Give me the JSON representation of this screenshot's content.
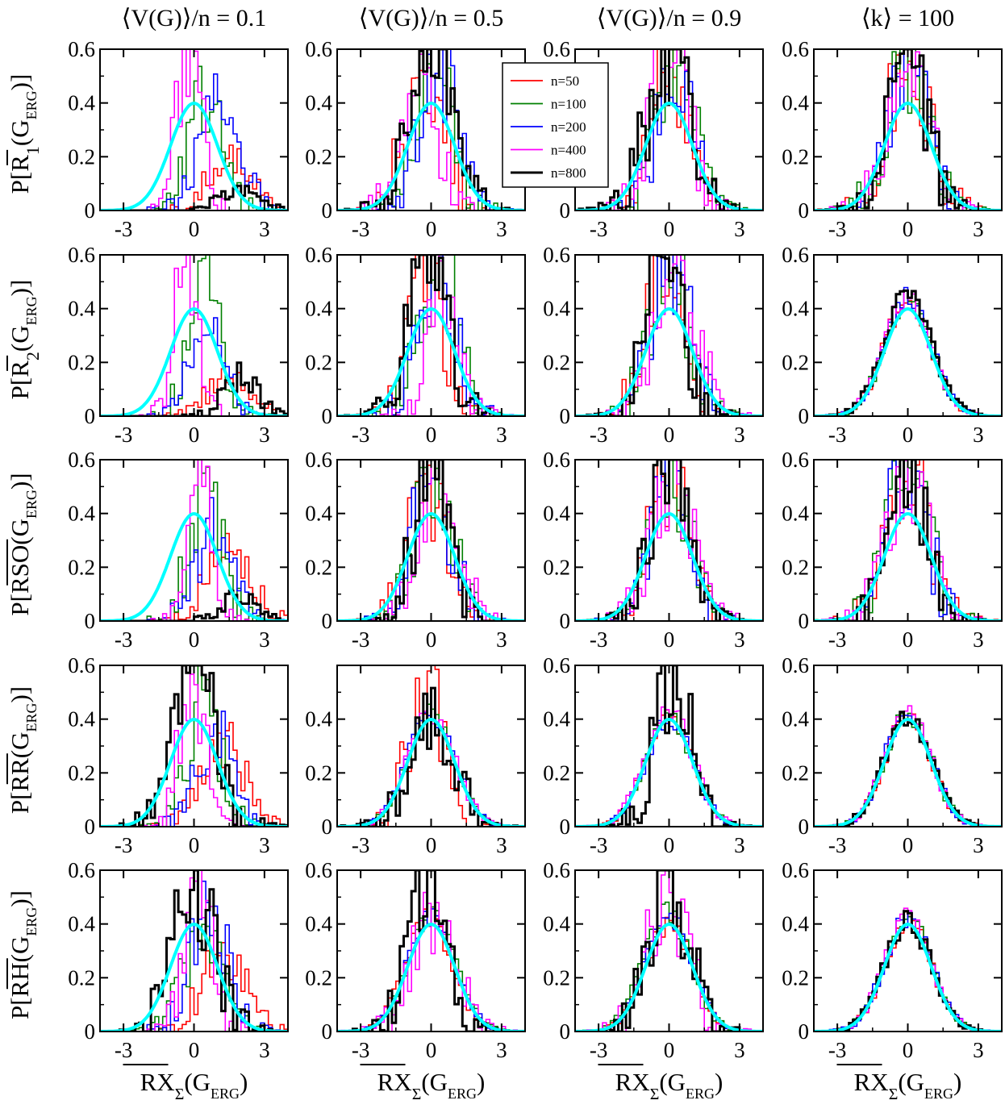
{
  "figure": {
    "column_titles": [
      "⟨V(G)⟩/n = 0.1",
      "⟨V(G)⟩/n = 0.5",
      "⟨V(G)⟩/n = 0.9",
      "⟨k⟩ = 100"
    ],
    "row_ylabels": [
      {
        "main": "P[R",
        "bar": "R",
        "sub": "1",
        "tail": "(G",
        "tail_sub": "ERG",
        "end": ")]"
      },
      {
        "main": "P[R",
        "bar": "R",
        "sub": "2",
        "tail": "(G",
        "tail_sub": "ERG",
        "end": ")]"
      },
      {
        "main": "P[RSO",
        "bar": "RSO",
        "sub": "",
        "tail": "(G",
        "tail_sub": "ERG",
        "end": ")]"
      },
      {
        "main": "P[RR",
        "bar": "RR",
        "sub": "",
        "tail": "(G",
        "tail_sub": "ERG",
        "end": ")]"
      },
      {
        "main": "P[RH",
        "bar": "RH",
        "sub": "",
        "tail": "(G",
        "tail_sub": "ERG",
        "end": ")]"
      }
    ],
    "xlabel": {
      "main": "RX",
      "sub": "Σ",
      "tail": "(G",
      "tail_sub": "ERG",
      "end": ")"
    }
  },
  "chart_data": {
    "type": "histogram",
    "layout": "5 rows x 4 columns of panels",
    "xlim": [
      -4,
      4
    ],
    "ylim": [
      0,
      0.6
    ],
    "xticks": [
      "-3",
      "0",
      "3"
    ],
    "yticks": [
      "0",
      "0.2",
      "0.4",
      "0.6"
    ],
    "reference_curve": {
      "name": "standard normal",
      "color": "#00ffff",
      "mean": 0,
      "std": 1,
      "peak": 0.399
    },
    "legend": {
      "panel": "row 1, column 3",
      "entries": [
        {
          "label": "n=50",
          "color": "#ff0000"
        },
        {
          "label": "n=100",
          "color": "#008000"
        },
        {
          "label": "n=200",
          "color": "#0000ff"
        },
        {
          "label": "n=400",
          "color": "#ff00ff"
        },
        {
          "label": "n=800",
          "color": "#000000"
        }
      ]
    },
    "series_colors": {
      "n50": "#ff0000",
      "n100": "#008000",
      "n200": "#0000ff",
      "n400": "#ff00ff",
      "n800": "#000000"
    },
    "panels": [
      [
        {
          "n50": {
            "c": 1.5,
            "s": 0.9,
            "p": 0.2
          },
          "n100": {
            "c": 0.5,
            "s": 0.7,
            "p": 0.45
          },
          "n200": {
            "c": 1.0,
            "s": 0.9,
            "p": 0.38
          },
          "n400": {
            "c": -0.2,
            "s": 0.5,
            "p": 0.6
          },
          "n800": {
            "c": 2.0,
            "s": 0.8,
            "p": 0.09
          }
        },
        {
          "n50": {
            "c": 1.5,
            "s": 0.9,
            "p": 0.15
          },
          "n100": {
            "c": 0.5,
            "s": 0.7,
            "p": 0.5
          },
          "n200": {
            "c": 0.6,
            "s": 0.8,
            "p": 0.3
          },
          "n400": {
            "c": -0.3,
            "s": 0.5,
            "p": 0.6
          },
          "n800": {
            "c": 2.0,
            "s": 0.7,
            "p": 0.15
          }
        },
        {
          "n50": {
            "c": 1.4,
            "s": 0.9,
            "p": 0.3
          },
          "n100": {
            "c": 0.5,
            "s": 0.7,
            "p": 0.48
          },
          "n200": {
            "c": 0.9,
            "s": 0.8,
            "p": 0.35
          },
          "n400": {
            "c": 0.2,
            "s": 0.5,
            "p": 0.55
          },
          "n800": {
            "c": 2.0,
            "s": 0.8,
            "p": 0.09
          }
        },
        {
          "n50": {
            "c": 1.3,
            "s": 0.9,
            "p": 0.3
          },
          "n100": {
            "c": 0.4,
            "s": 0.7,
            "p": 0.48
          },
          "n200": {
            "c": 0.9,
            "s": 0.8,
            "p": 0.35
          },
          "n400": {
            "c": -0.1,
            "s": 0.5,
            "p": 0.6
          },
          "n800": {
            "c": 0.1,
            "s": 0.9,
            "p": 0.55
          }
        },
        {
          "n50": {
            "c": 1.2,
            "s": 0.9,
            "p": 0.3
          },
          "n100": {
            "c": 0.4,
            "s": 0.8,
            "p": 0.38
          },
          "n200": {
            "c": 0.6,
            "s": 0.8,
            "p": 0.45
          },
          "n400": {
            "c": 0.3,
            "s": 0.6,
            "p": 0.55
          },
          "n800": {
            "c": 0.0,
            "s": 0.9,
            "p": 0.52
          }
        }
      ],
      [
        {
          "n50": {
            "c": -0.3,
            "s": 0.8,
            "p": 0.55
          },
          "n100": {
            "c": 0.1,
            "s": 0.8,
            "p": 0.6
          },
          "n200": {
            "c": 0.3,
            "s": 0.8,
            "p": 0.55
          },
          "n400": {
            "c": -0.5,
            "s": 0.8,
            "p": 0.45
          },
          "n800": {
            "c": 0.0,
            "s": 0.9,
            "p": 0.6
          }
        },
        {
          "n50": {
            "c": -0.2,
            "s": 0.7,
            "p": 0.6
          },
          "n100": {
            "c": 0.3,
            "s": 0.8,
            "p": 0.6
          },
          "n200": {
            "c": 0.2,
            "s": 0.8,
            "p": 0.55
          },
          "n400": {
            "c": 0.5,
            "s": 0.7,
            "p": 0.48
          },
          "n800": {
            "c": -0.1,
            "s": 0.8,
            "p": 0.6
          }
        },
        {
          "n50": {
            "c": -0.2,
            "s": 0.8,
            "p": 0.5
          },
          "n100": {
            "c": 0.1,
            "s": 0.8,
            "p": 0.55
          },
          "n200": {
            "c": 0.0,
            "s": 0.8,
            "p": 0.6
          },
          "n400": {
            "c": 0.3,
            "s": 0.8,
            "p": 0.55
          },
          "n800": {
            "c": 0.0,
            "s": 0.7,
            "p": 0.6
          }
        },
        {
          "n50": {
            "c": -0.2,
            "s": 0.8,
            "p": 0.5
          },
          "n100": {
            "c": 0.0,
            "s": 1.0,
            "p": 0.42
          },
          "n200": {
            "c": 0.0,
            "s": 1.0,
            "p": 0.42
          },
          "n400": {
            "c": 0.0,
            "s": 1.0,
            "p": 0.42
          },
          "n800": {
            "c": 0.0,
            "s": 0.9,
            "p": 0.45
          }
        },
        {
          "n50": {
            "c": -0.1,
            "s": 1.0,
            "p": 0.42
          },
          "n100": {
            "c": 0.0,
            "s": 1.0,
            "p": 0.43
          },
          "n200": {
            "c": 0.0,
            "s": 1.0,
            "p": 0.43
          },
          "n400": {
            "c": 0.1,
            "s": 0.9,
            "p": 0.45
          },
          "n800": {
            "c": -0.2,
            "s": 0.8,
            "p": 0.55
          }
        }
      ],
      [
        {
          "n50": {
            "c": 0.0,
            "s": 0.8,
            "p": 0.55
          },
          "n100": {
            "c": 0.2,
            "s": 0.8,
            "p": 0.6
          },
          "n200": {
            "c": 0.3,
            "s": 0.8,
            "p": 0.55
          },
          "n400": {
            "c": 0.0,
            "s": 0.8,
            "p": 0.6
          },
          "n800": {
            "c": 0.0,
            "s": 0.9,
            "p": 0.6
          }
        },
        {
          "n50": {
            "c": -0.2,
            "s": 0.8,
            "p": 0.6
          },
          "n100": {
            "c": 0.0,
            "s": 0.8,
            "p": 0.6
          },
          "n200": {
            "c": 0.1,
            "s": 0.8,
            "p": 0.6
          },
          "n400": {
            "c": 0.3,
            "s": 0.9,
            "p": 0.5
          },
          "n800": {
            "c": -0.2,
            "s": 0.8,
            "p": 0.6
          }
        },
        {
          "n50": {
            "c": 0.0,
            "s": 0.8,
            "p": 0.55
          },
          "n100": {
            "c": 0.0,
            "s": 0.8,
            "p": 0.6
          },
          "n200": {
            "c": 0.0,
            "s": 0.8,
            "p": 0.55
          },
          "n400": {
            "c": 0.1,
            "s": 0.9,
            "p": 0.5
          },
          "n800": {
            "c": 0.0,
            "s": 0.8,
            "p": 0.6
          }
        },
        {
          "n50": {
            "c": 0.0,
            "s": 1.0,
            "p": 0.4
          },
          "n100": {
            "c": 0.0,
            "s": 1.0,
            "p": 0.4
          },
          "n200": {
            "c": 0.0,
            "s": 1.0,
            "p": 0.4
          },
          "n400": {
            "c": 0.0,
            "s": 1.0,
            "p": 0.44
          },
          "n800": {
            "c": 0.2,
            "s": 0.8,
            "p": 0.55
          }
        },
        {
          "n50": {
            "c": 0.0,
            "s": 1.0,
            "p": 0.4
          },
          "n100": {
            "c": -0.1,
            "s": 1.0,
            "p": 0.44
          },
          "n200": {
            "c": 0.0,
            "s": 1.0,
            "p": 0.42
          },
          "n400": {
            "c": -0.1,
            "s": 0.9,
            "p": 0.5
          },
          "n800": {
            "c": 0.0,
            "s": 0.8,
            "p": 0.6
          }
        }
      ],
      [
        {
          "n50": {
            "c": 0.0,
            "s": 0.9,
            "p": 0.55
          },
          "n100": {
            "c": 0.0,
            "s": 0.9,
            "p": 0.55
          },
          "n200": {
            "c": 0.0,
            "s": 0.8,
            "p": 0.6
          },
          "n400": {
            "c": 0.0,
            "s": 0.9,
            "p": 0.5
          },
          "n800": {
            "c": 0.0,
            "s": 0.8,
            "p": 0.6
          }
        },
        {
          "n50": {
            "c": 0.0,
            "s": 1.0,
            "p": 0.43
          },
          "n100": {
            "c": 0.0,
            "s": 1.0,
            "p": 0.43
          },
          "n200": {
            "c": 0.0,
            "s": 1.0,
            "p": 0.44
          },
          "n400": {
            "c": 0.0,
            "s": 1.0,
            "p": 0.44
          },
          "n800": {
            "c": 0.0,
            "s": 1.0,
            "p": 0.45
          }
        },
        {
          "n50": {
            "c": 0.0,
            "s": 0.9,
            "p": 0.55
          },
          "n100": {
            "c": 0.0,
            "s": 0.9,
            "p": 0.55
          },
          "n200": {
            "c": 0.0,
            "s": 0.8,
            "p": 0.6
          },
          "n400": {
            "c": 0.0,
            "s": 0.9,
            "p": 0.5
          },
          "n800": {
            "c": 0.0,
            "s": 0.8,
            "p": 0.55
          }
        },
        {
          "n50": {
            "c": 0.0,
            "s": 1.0,
            "p": 0.41
          },
          "n100": {
            "c": 0.0,
            "s": 1.0,
            "p": 0.42
          },
          "n200": {
            "c": 0.0,
            "s": 1.0,
            "p": 0.42
          },
          "n400": {
            "c": 0.0,
            "s": 1.0,
            "p": 0.42
          },
          "n800": {
            "c": 0.0,
            "s": 1.0,
            "p": 0.41
          }
        },
        {
          "n50": {
            "c": 0.0,
            "s": 1.0,
            "p": 0.41
          },
          "n100": {
            "c": 0.0,
            "s": 1.0,
            "p": 0.42
          },
          "n200": {
            "c": 0.0,
            "s": 1.0,
            "p": 0.42
          },
          "n400": {
            "c": 0.0,
            "s": 1.0,
            "p": 0.42
          },
          "n800": {
            "c": 0.0,
            "s": 1.0,
            "p": 0.41
          }
        }
      ]
    ]
  }
}
